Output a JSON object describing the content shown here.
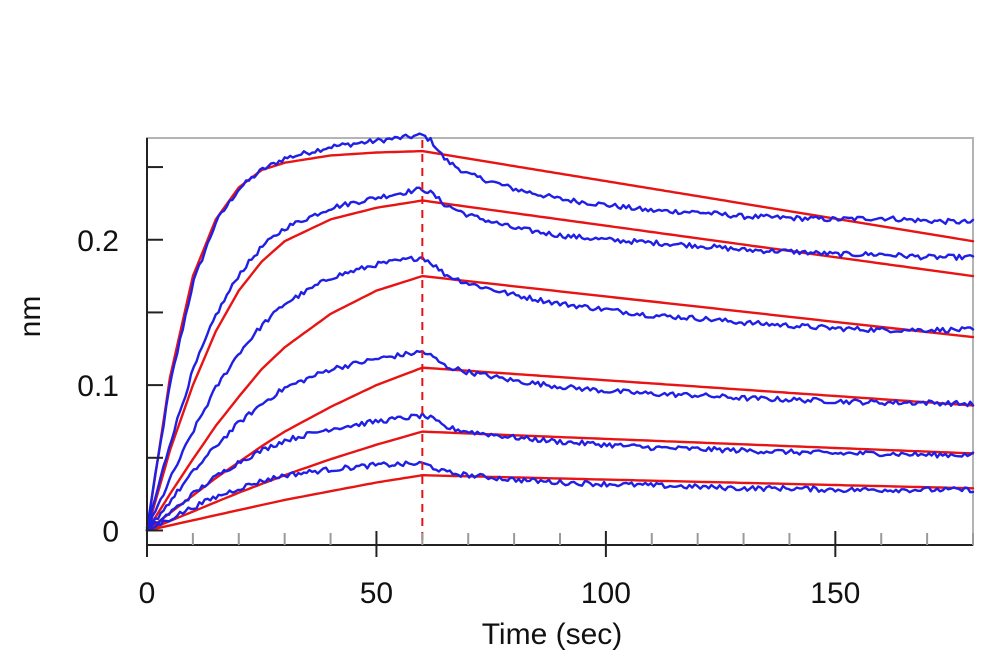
{
  "chart_data": {
    "type": "line",
    "title": "",
    "xlabel": "Time (sec)",
    "ylabel": "nm",
    "xlim": [
      0,
      180
    ],
    "ylim": [
      -0.01,
      0.27
    ],
    "x_ticks": [
      0,
      50,
      100,
      150
    ],
    "x_tick_labels": [
      "0",
      "50",
      "100",
      "150"
    ],
    "y_ticks": [
      0,
      0.1,
      0.2
    ],
    "y_tick_labels": [
      "0",
      "0.1",
      "0.2"
    ],
    "y_minor_ticks": [
      0.05,
      0.15,
      0.25
    ],
    "x_minor_step": 10,
    "grid": false,
    "legend": "none",
    "association_end": 60,
    "measured_color": "#1f1fe6",
    "fit_color": "#e81414",
    "divider_color": "#e81414",
    "measured": [
      {
        "x": [
          0,
          5,
          10,
          15,
          20,
          25,
          30,
          40,
          50,
          60,
          62,
          65,
          70,
          80,
          90,
          100,
          110,
          120,
          130,
          140,
          150,
          160,
          170,
          180
        ],
        "y": [
          0.002,
          0.1,
          0.17,
          0.212,
          0.235,
          0.248,
          0.256,
          0.264,
          0.268,
          0.272,
          0.268,
          0.255,
          0.245,
          0.235,
          0.228,
          0.224,
          0.22,
          0.219,
          0.216,
          0.215,
          0.214,
          0.215,
          0.213,
          0.212
        ]
      },
      {
        "x": [
          0,
          5,
          10,
          15,
          20,
          25,
          30,
          40,
          50,
          60,
          62,
          65,
          70,
          80,
          90,
          100,
          110,
          120,
          130,
          140,
          150,
          160,
          170,
          180
        ],
        "y": [
          0.001,
          0.06,
          0.11,
          0.148,
          0.176,
          0.195,
          0.208,
          0.222,
          0.229,
          0.235,
          0.232,
          0.224,
          0.217,
          0.208,
          0.203,
          0.2,
          0.198,
          0.196,
          0.193,
          0.192,
          0.19,
          0.19,
          0.188,
          0.188
        ]
      },
      {
        "x": [
          0,
          5,
          10,
          15,
          20,
          25,
          30,
          40,
          50,
          60,
          62,
          65,
          70,
          80,
          90,
          100,
          110,
          120,
          130,
          140,
          150,
          160,
          170,
          180
        ],
        "y": [
          0.0,
          0.035,
          0.068,
          0.098,
          0.122,
          0.141,
          0.156,
          0.174,
          0.183,
          0.188,
          0.184,
          0.176,
          0.17,
          0.162,
          0.156,
          0.152,
          0.148,
          0.146,
          0.143,
          0.141,
          0.139,
          0.138,
          0.138,
          0.138
        ]
      },
      {
        "x": [
          0,
          5,
          10,
          15,
          20,
          25,
          30,
          40,
          50,
          60,
          62,
          65,
          70,
          80,
          90,
          100,
          110,
          120,
          130,
          140,
          150,
          160,
          170,
          180
        ],
        "y": [
          0.0,
          0.02,
          0.04,
          0.058,
          0.074,
          0.087,
          0.098,
          0.111,
          0.118,
          0.123,
          0.12,
          0.113,
          0.109,
          0.103,
          0.099,
          0.096,
          0.094,
          0.093,
          0.091,
          0.09,
          0.089,
          0.088,
          0.088,
          0.087
        ]
      },
      {
        "x": [
          0,
          5,
          10,
          15,
          20,
          25,
          30,
          40,
          50,
          60,
          62,
          65,
          70,
          80,
          90,
          100,
          110,
          120,
          130,
          140,
          150,
          160,
          170,
          180
        ],
        "y": [
          0.0,
          0.012,
          0.025,
          0.037,
          0.047,
          0.055,
          0.062,
          0.07,
          0.075,
          0.079,
          0.077,
          0.071,
          0.068,
          0.064,
          0.061,
          0.059,
          0.057,
          0.056,
          0.055,
          0.054,
          0.053,
          0.053,
          0.052,
          0.052
        ]
      },
      {
        "x": [
          0,
          5,
          10,
          15,
          20,
          25,
          30,
          40,
          50,
          60,
          62,
          65,
          70,
          80,
          90,
          100,
          110,
          120,
          130,
          140,
          150,
          160,
          170,
          180
        ],
        "y": [
          0.0,
          0.008,
          0.016,
          0.023,
          0.029,
          0.034,
          0.038,
          0.042,
          0.045,
          0.046,
          0.044,
          0.04,
          0.038,
          0.035,
          0.033,
          0.032,
          0.031,
          0.03,
          0.029,
          0.029,
          0.028,
          0.028,
          0.028,
          0.028
        ]
      }
    ],
    "fitted": [
      {
        "x": [
          0,
          5,
          10,
          15,
          20,
          25,
          30,
          40,
          50,
          60,
          180
        ],
        "y": [
          0.0,
          0.105,
          0.175,
          0.214,
          0.236,
          0.248,
          0.253,
          0.258,
          0.26,
          0.261,
          0.199
        ]
      },
      {
        "x": [
          0,
          5,
          10,
          15,
          20,
          25,
          30,
          40,
          50,
          60,
          180
        ],
        "y": [
          0.0,
          0.055,
          0.1,
          0.137,
          0.165,
          0.185,
          0.199,
          0.214,
          0.222,
          0.227,
          0.175
        ]
      },
      {
        "x": [
          0,
          5,
          10,
          15,
          20,
          25,
          30,
          40,
          50,
          60,
          180
        ],
        "y": [
          0.0,
          0.025,
          0.049,
          0.072,
          0.092,
          0.111,
          0.126,
          0.149,
          0.165,
          0.175,
          0.133
        ]
      },
      {
        "x": [
          0,
          5,
          10,
          15,
          20,
          25,
          30,
          40,
          50,
          60,
          180
        ],
        "y": [
          0.0,
          0.012,
          0.024,
          0.036,
          0.047,
          0.058,
          0.068,
          0.085,
          0.1,
          0.112,
          0.086
        ]
      },
      {
        "x": [
          0,
          10,
          20,
          30,
          40,
          50,
          60,
          180
        ],
        "y": [
          0.0,
          0.013,
          0.026,
          0.038,
          0.049,
          0.059,
          0.068,
          0.053
        ]
      },
      {
        "x": [
          0,
          10,
          20,
          30,
          40,
          50,
          60,
          180
        ],
        "y": [
          0.0,
          0.007,
          0.014,
          0.021,
          0.027,
          0.033,
          0.038,
          0.029
        ]
      }
    ]
  }
}
